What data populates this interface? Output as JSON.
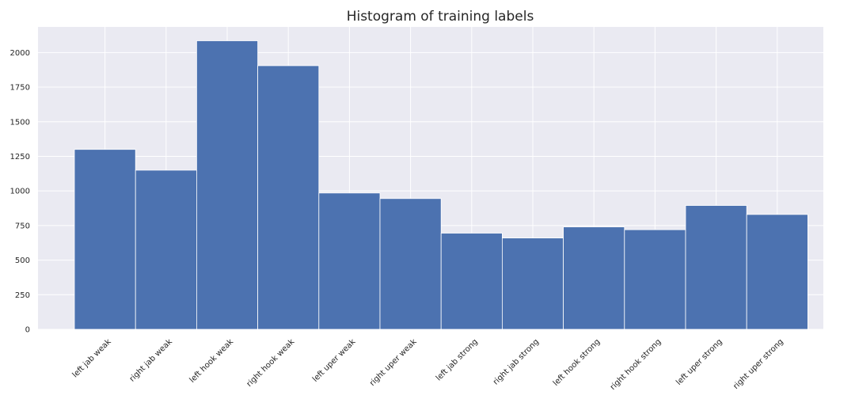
{
  "chart_data": {
    "type": "bar",
    "title": "Histogram of training labels",
    "xlabel": "",
    "ylabel": "",
    "categories": [
      "left jab weak",
      "right jab weak",
      "left hook weak",
      "right hook weak",
      "left uper weak",
      "right uper weak",
      "left jab strong",
      "right jab strong",
      "left hook strong",
      "right hook strong",
      "left uper strong",
      "right uper strong"
    ],
    "values": [
      1300,
      1150,
      2085,
      1905,
      985,
      945,
      695,
      660,
      740,
      720,
      895,
      830
    ],
    "ylim": [
      0,
      2185
    ],
    "yticks": [
      0,
      250,
      500,
      750,
      1000,
      1250,
      1500,
      1750,
      2000
    ],
    "ytick_labels": [
      "0",
      "250",
      "500",
      "750",
      "1000",
      "1250",
      "1500",
      "1750",
      "2000"
    ],
    "grid": true,
    "legend": "none",
    "colors": {
      "bar": "#4c72b0",
      "bar_edge": "#ffffff",
      "plot_background": "#eaeaf2",
      "grid": "#ffffff"
    }
  }
}
